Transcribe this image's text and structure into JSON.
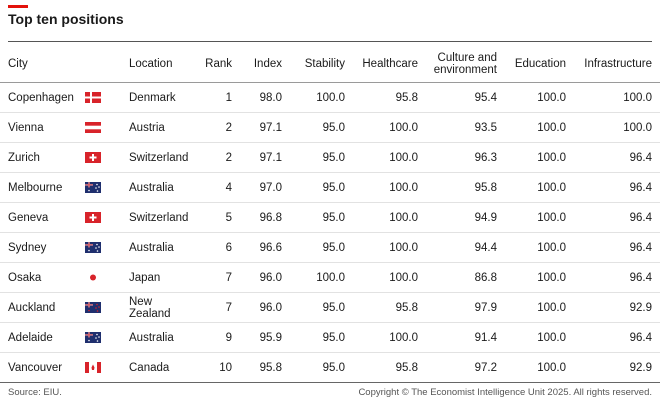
{
  "header": {
    "title": "Top ten positions"
  },
  "table": {
    "columns": [
      "City",
      "Location",
      "Rank",
      "Index",
      "Stability",
      "Healthcare",
      "Culture and environment",
      "Education",
      "Infrastructure"
    ],
    "rows": [
      [
        "Copenhagen",
        "Denmark",
        "1",
        "98.0",
        "100.0",
        "95.8",
        "95.4",
        "100.0",
        "100.0"
      ],
      [
        "Vienna",
        "Austria",
        "2",
        "97.1",
        "95.0",
        "100.0",
        "93.5",
        "100.0",
        "100.0"
      ],
      [
        "Zurich",
        "Switzerland",
        "2",
        "97.1",
        "95.0",
        "100.0",
        "96.3",
        "100.0",
        "96.4"
      ],
      [
        "Melbourne",
        "Australia",
        "4",
        "97.0",
        "95.0",
        "100.0",
        "95.8",
        "100.0",
        "96.4"
      ],
      [
        "Geneva",
        "Switzerland",
        "5",
        "96.8",
        "95.0",
        "100.0",
        "94.9",
        "100.0",
        "96.4"
      ],
      [
        "Sydney",
        "Australia",
        "6",
        "96.6",
        "95.0",
        "100.0",
        "94.4",
        "100.0",
        "96.4"
      ],
      [
        "Osaka",
        "Japan",
        "7",
        "96.0",
        "100.0",
        "100.0",
        "86.8",
        "100.0",
        "96.4"
      ],
      [
        "Auckland",
        "New Zealand",
        "7",
        "96.0",
        "95.0",
        "95.8",
        "97.9",
        "100.0",
        "92.9"
      ],
      [
        "Adelaide",
        "Australia",
        "9",
        "95.9",
        "95.0",
        "100.0",
        "91.4",
        "100.0",
        "96.4"
      ],
      [
        "Vancouver",
        "Canada",
        "10",
        "95.8",
        "95.0",
        "95.8",
        "97.2",
        "100.0",
        "92.9"
      ]
    ]
  },
  "footer": {
    "source": "Source: EIU.",
    "copyright": "Copyright © The Economist Intelligence Unit 2025. All rights reserved."
  }
}
